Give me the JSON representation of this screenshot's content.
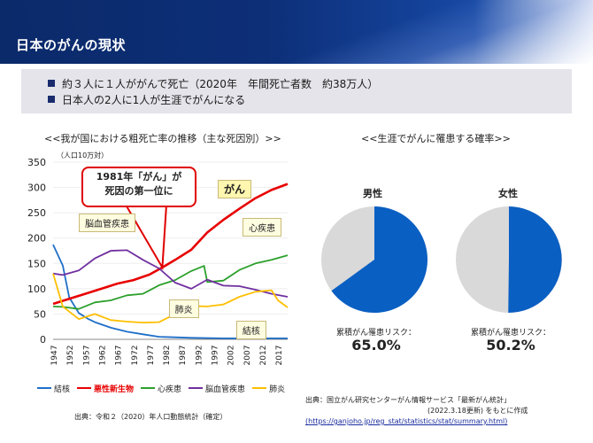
{
  "header": {
    "title": "日本のがんの現状"
  },
  "summary": {
    "bullet1": "約３人に１人ががんで死亡（2020年　年間死亡者数　約38万人）",
    "bullet2": "日本人の2人に1人が生涯でがんになる"
  },
  "left": {
    "section_title": "<<我が国における粗死亡率の推移（主な死因別）>>",
    "unit": "（人口10万対）",
    "callout_1981": [
      "1981年「がん」が",
      "死因の第一位に"
    ],
    "source": "出典：令和２（2020）年人口動態統計（確定）"
  },
  "right": {
    "section_title": "<<生涯でがんに罹患する確率>>",
    "male": {
      "label": "男性",
      "risk_text": "累積がん罹患リスク：",
      "risk_value": "65.0%",
      "percent": 65.0
    },
    "female": {
      "label": "女性",
      "risk_text": "累積がん罹患リスク：",
      "risk_value": "50.2%",
      "percent": 50.2
    },
    "source_line1": "出典：国立がん研究センターがん情報サービス「最新がん統計」",
    "source_line2": "(2022.3.18更新) をもとに作成",
    "source_link": "(https://ganjoho.jp/reg_stat/statistics/stat/summary.html)"
  },
  "colors": {
    "header": "#0d2f78",
    "kekkaku": "#1f6fc9",
    "cancer": "#e80000",
    "heart": "#2ca02c",
    "stroke": "#7030a0",
    "pneumonia": "#ffbf00",
    "pie_fill": "#0a5fc3",
    "pie_rest": "#d9d9d9"
  },
  "chart_data": {
    "type": "line",
    "x_ticks": [
      1947,
      1952,
      1957,
      1962,
      1967,
      1972,
      1977,
      1982,
      1987,
      1992,
      1997,
      2002,
      2007,
      2012,
      2017
    ],
    "ylim": [
      0,
      350
    ],
    "yticks": [
      0,
      50,
      100,
      150,
      200,
      250,
      300,
      350
    ],
    "series": [
      {
        "name": "結核",
        "color_key": "kekkaku",
        "label": "結核",
        "points": [
          [
            1947,
            187
          ],
          [
            1950,
            146
          ],
          [
            1952,
            83
          ],
          [
            1955,
            52
          ],
          [
            1958,
            40
          ],
          [
            1960,
            34
          ],
          [
            1965,
            23
          ],
          [
            1970,
            15
          ],
          [
            1975,
            10
          ],
          [
            1980,
            5
          ],
          [
            1985,
            4
          ],
          [
            1990,
            3
          ],
          [
            2000,
            2
          ],
          [
            2010,
            2
          ],
          [
            2020,
            2
          ]
        ]
      },
      {
        "name": "悪性新生物",
        "color_key": "cancer",
        "label": "がん",
        "points": [
          [
            1947,
            70
          ],
          [
            1952,
            80
          ],
          [
            1957,
            90
          ],
          [
            1962,
            100
          ],
          [
            1967,
            110
          ],
          [
            1972,
            117
          ],
          [
            1977,
            128
          ],
          [
            1981,
            142
          ],
          [
            1985,
            157
          ],
          [
            1990,
            177
          ],
          [
            1995,
            211
          ],
          [
            2000,
            236
          ],
          [
            2005,
            258
          ],
          [
            2010,
            279
          ],
          [
            2015,
            295
          ],
          [
            2020,
            307
          ]
        ]
      },
      {
        "name": "心疾患",
        "color_key": "heart",
        "label": "心疾患",
        "points": [
          [
            1947,
            65
          ],
          [
            1950,
            64
          ],
          [
            1955,
            60
          ],
          [
            1960,
            73
          ],
          [
            1965,
            77
          ],
          [
            1970,
            87
          ],
          [
            1975,
            90
          ],
          [
            1980,
            107
          ],
          [
            1985,
            117
          ],
          [
            1990,
            135
          ],
          [
            1994,
            145
          ],
          [
            1995,
            113
          ],
          [
            2000,
            116
          ],
          [
            2005,
            137
          ],
          [
            2010,
            150
          ],
          [
            2015,
            157
          ],
          [
            2020,
            166
          ]
        ]
      },
      {
        "name": "脳血管疾患",
        "color_key": "stroke",
        "label": "脳血管疾患",
        "points": [
          [
            1947,
            130
          ],
          [
            1950,
            127
          ],
          [
            1955,
            136
          ],
          [
            1960,
            160
          ],
          [
            1965,
            175
          ],
          [
            1970,
            176
          ],
          [
            1975,
            157
          ],
          [
            1980,
            140
          ],
          [
            1985,
            112
          ],
          [
            1990,
            100
          ],
          [
            1995,
            118
          ],
          [
            2000,
            106
          ],
          [
            2005,
            105
          ],
          [
            2010,
            98
          ],
          [
            2015,
            90
          ],
          [
            2020,
            84
          ]
        ]
      },
      {
        "name": "肺炎",
        "color_key": "pneumonia",
        "label": "肺炎",
        "points": [
          [
            1947,
            130
          ],
          [
            1950,
            65
          ],
          [
            1955,
            40
          ],
          [
            1960,
            50
          ],
          [
            1965,
            38
          ],
          [
            1970,
            35
          ],
          [
            1975,
            33
          ],
          [
            1980,
            34
          ],
          [
            1985,
            50
          ],
          [
            1990,
            66
          ],
          [
            1995,
            65
          ],
          [
            2000,
            69
          ],
          [
            2005,
            84
          ],
          [
            2010,
            94
          ],
          [
            2015,
            97
          ],
          [
            2017,
            77
          ],
          [
            2020,
            63
          ]
        ]
      }
    ],
    "legend": [
      "結核",
      "悪性新生物",
      "心疾患",
      "脳血管疾患",
      "肺炎"
    ]
  }
}
